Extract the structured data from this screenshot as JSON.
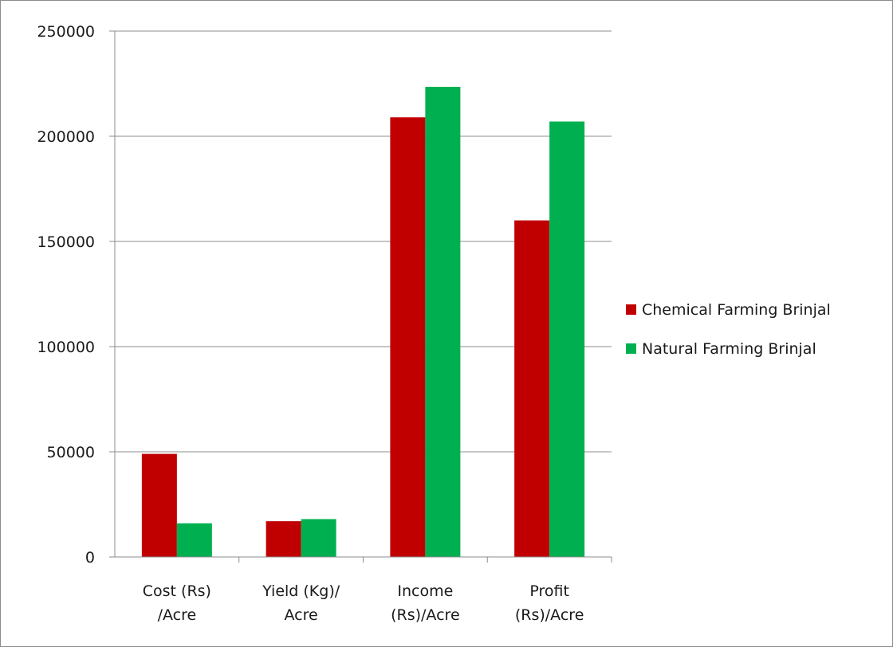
{
  "chart_data": {
    "type": "bar",
    "title": "",
    "xlabel": "",
    "ylabel": "",
    "categories": [
      [
        "Cost (Rs)",
        "/Acre"
      ],
      [
        "Yield (Kg)/",
        "Acre"
      ],
      [
        "Income",
        "(Rs)/Acre"
      ],
      [
        "Profit",
        "(Rs)/Acre"
      ]
    ],
    "series": [
      {
        "name": "Chemical Farming Brinjal",
        "color": "#c00000",
        "values": [
          49000,
          17000,
          209000,
          160000
        ]
      },
      {
        "name": "Natural Farming Brinjal",
        "color": "#00b050",
        "values": [
          16000,
          18000,
          223500,
          207000
        ]
      }
    ],
    "ylim": [
      0,
      250000
    ],
    "yticks": [
      0,
      50000,
      100000,
      150000,
      200000,
      250000
    ],
    "grid": true,
    "legend_position": "right"
  }
}
